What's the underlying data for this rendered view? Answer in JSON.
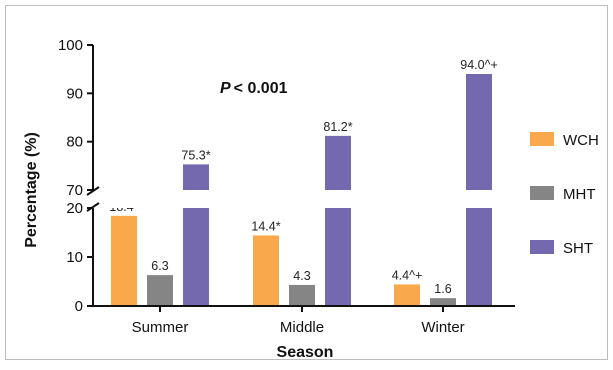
{
  "chart_data": {
    "type": "bar",
    "annotation": "P < 0.001",
    "annotation_parts": {
      "p": "P",
      "rest": "< 0.001"
    },
    "xlabel": "Season",
    "ylabel": "Percentage (%)",
    "categories": [
      "Summer",
      "Middle",
      "Winter"
    ],
    "series": [
      {
        "name": "WCH",
        "color": "#F9A94B",
        "values": [
          18.4,
          14.4,
          4.4
        ],
        "labels": [
          "18.4*",
          "14.4*",
          "4.4^+"
        ]
      },
      {
        "name": "MHT",
        "color": "#858585",
        "values": [
          6.3,
          4.3,
          1.6
        ],
        "labels": [
          "6.3",
          "4.3",
          "1.6"
        ]
      },
      {
        "name": "SHT",
        "color": "#7468AE",
        "values": [
          75.3,
          81.2,
          94.0
        ],
        "labels": [
          "75.3*",
          "81.2*",
          "94.0^+"
        ]
      }
    ],
    "y_axis": {
      "broken": true,
      "lower_segment": {
        "range": [
          0,
          20
        ],
        "ticks": [
          0,
          10,
          20
        ]
      },
      "upper_segment": {
        "range": [
          70,
          100
        ],
        "ticks": [
          70,
          80,
          90,
          100
        ]
      }
    },
    "grid": false,
    "legend_position": "right"
  }
}
